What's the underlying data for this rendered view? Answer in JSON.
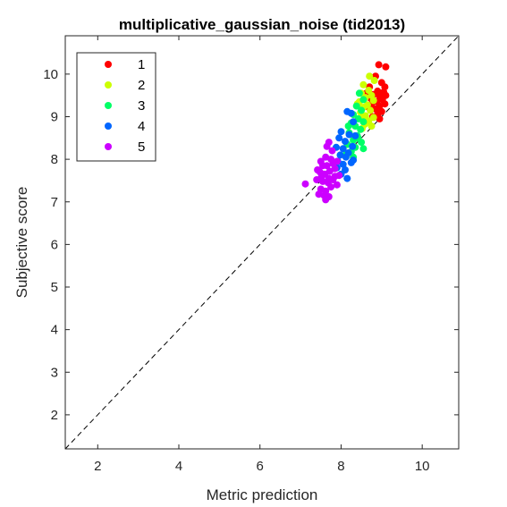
{
  "chart_data": {
    "type": "scatter",
    "title": "multiplicative_gaussian_noise (tid2013)",
    "xlabel": "Metric prediction",
    "ylabel": "Subjective score",
    "xlim": [
      1.2,
      10.9
    ],
    "ylim": [
      1.2,
      10.9
    ],
    "xticks": [
      2,
      4,
      6,
      8,
      10
    ],
    "yticks": [
      2,
      3,
      4,
      5,
      6,
      7,
      8,
      9,
      10
    ],
    "grid": false,
    "legend_position": "top-left",
    "reference_line": {
      "style": "dashed",
      "color": "#000000",
      "from": [
        1.2,
        1.2
      ],
      "to": [
        10.9,
        10.9
      ]
    },
    "series": [
      {
        "name": "1",
        "color": "#ff0000",
        "points": [
          [
            8.93,
            10.22
          ],
          [
            9.1,
            10.17
          ],
          [
            8.85,
            9.95
          ],
          [
            9.0,
            9.8
          ],
          [
            8.7,
            9.7
          ],
          [
            9.08,
            9.7
          ],
          [
            8.9,
            9.6
          ],
          [
            9.05,
            9.58
          ],
          [
            8.62,
            9.55
          ],
          [
            8.8,
            9.52
          ],
          [
            9.1,
            9.5
          ],
          [
            8.95,
            9.48
          ],
          [
            8.7,
            9.45
          ],
          [
            9.02,
            9.4
          ],
          [
            8.88,
            9.35
          ],
          [
            9.08,
            9.3
          ],
          [
            8.75,
            9.3
          ],
          [
            8.95,
            9.25
          ],
          [
            8.68,
            9.22
          ],
          [
            8.85,
            9.18
          ],
          [
            9.0,
            9.12
          ],
          [
            8.9,
            9.05
          ],
          [
            8.78,
            9.0
          ],
          [
            8.95,
            8.95
          ]
        ]
      },
      {
        "name": "2",
        "color": "#ccff00",
        "points": [
          [
            8.7,
            9.95
          ],
          [
            8.82,
            9.85
          ],
          [
            8.55,
            9.75
          ],
          [
            8.68,
            9.62
          ],
          [
            8.5,
            9.55
          ],
          [
            8.75,
            9.5
          ],
          [
            8.6,
            9.45
          ],
          [
            8.8,
            9.38
          ],
          [
            8.45,
            9.35
          ],
          [
            8.65,
            9.28
          ],
          [
            8.55,
            9.22
          ],
          [
            8.72,
            9.15
          ],
          [
            8.48,
            9.1
          ],
          [
            8.6,
            9.02
          ],
          [
            8.8,
            8.98
          ],
          [
            8.5,
            8.95
          ],
          [
            8.68,
            8.9
          ],
          [
            8.58,
            8.82
          ],
          [
            8.75,
            8.78
          ],
          [
            8.52,
            8.72
          ],
          [
            8.4,
            9.3
          ]
        ]
      },
      {
        "name": "3",
        "color": "#00ff66",
        "points": [
          [
            8.45,
            9.55
          ],
          [
            8.55,
            9.4
          ],
          [
            8.38,
            9.25
          ],
          [
            8.5,
            9.15
          ],
          [
            8.3,
            9.05
          ],
          [
            8.42,
            8.95
          ],
          [
            8.55,
            8.88
          ],
          [
            8.25,
            8.85
          ],
          [
            8.35,
            8.78
          ],
          [
            8.48,
            8.7
          ],
          [
            8.2,
            8.62
          ],
          [
            8.4,
            8.55
          ],
          [
            8.3,
            8.45
          ],
          [
            8.5,
            8.4
          ],
          [
            8.15,
            8.35
          ],
          [
            8.35,
            8.28
          ],
          [
            8.55,
            8.25
          ],
          [
            8.25,
            8.18
          ],
          [
            8.1,
            8.1
          ],
          [
            8.3,
            8.05
          ],
          [
            8.42,
            8.5
          ],
          [
            8.18,
            8.78
          ]
        ]
      },
      {
        "name": "4",
        "color": "#0066ff",
        "points": [
          [
            8.15,
            9.12
          ],
          [
            8.25,
            9.08
          ],
          [
            8.3,
            8.88
          ],
          [
            8.0,
            8.65
          ],
          [
            8.2,
            8.58
          ],
          [
            8.35,
            8.55
          ],
          [
            7.95,
            8.5
          ],
          [
            8.1,
            8.42
          ],
          [
            8.28,
            8.3
          ],
          [
            7.88,
            8.28
          ],
          [
            8.05,
            8.25
          ],
          [
            8.18,
            8.15
          ],
          [
            7.98,
            8.1
          ],
          [
            8.12,
            8.05
          ],
          [
            7.92,
            7.95
          ],
          [
            8.25,
            7.92
          ],
          [
            8.05,
            7.88
          ],
          [
            7.9,
            7.8
          ],
          [
            8.1,
            7.75
          ],
          [
            8.0,
            7.65
          ],
          [
            8.15,
            7.55
          ],
          [
            8.3,
            7.98
          ]
        ]
      },
      {
        "name": "5",
        "color": "#cc00ff",
        "points": [
          [
            7.12,
            7.42
          ],
          [
            7.5,
            7.95
          ],
          [
            7.62,
            8.05
          ],
          [
            7.7,
            8.4
          ],
          [
            7.65,
            8.3
          ],
          [
            7.78,
            8.2
          ],
          [
            7.55,
            7.85
          ],
          [
            7.8,
            7.9
          ],
          [
            7.9,
            7.95
          ],
          [
            7.48,
            7.7
          ],
          [
            7.6,
            7.65
          ],
          [
            7.72,
            7.72
          ],
          [
            7.85,
            7.78
          ],
          [
            7.95,
            7.62
          ],
          [
            7.4,
            7.52
          ],
          [
            7.55,
            7.48
          ],
          [
            7.68,
            7.45
          ],
          [
            7.8,
            7.52
          ],
          [
            7.9,
            7.4
          ],
          [
            7.5,
            7.3
          ],
          [
            7.62,
            7.25
          ],
          [
            7.75,
            7.35
          ],
          [
            7.45,
            7.18
          ],
          [
            7.58,
            7.15
          ],
          [
            7.7,
            7.12
          ],
          [
            7.62,
            7.05
          ],
          [
            7.52,
            7.6
          ],
          [
            7.7,
            7.55
          ],
          [
            7.85,
            7.6
          ],
          [
            7.42,
            7.75
          ],
          [
            7.65,
            7.85
          ],
          [
            7.75,
            8.0
          ]
        ]
      }
    ]
  }
}
